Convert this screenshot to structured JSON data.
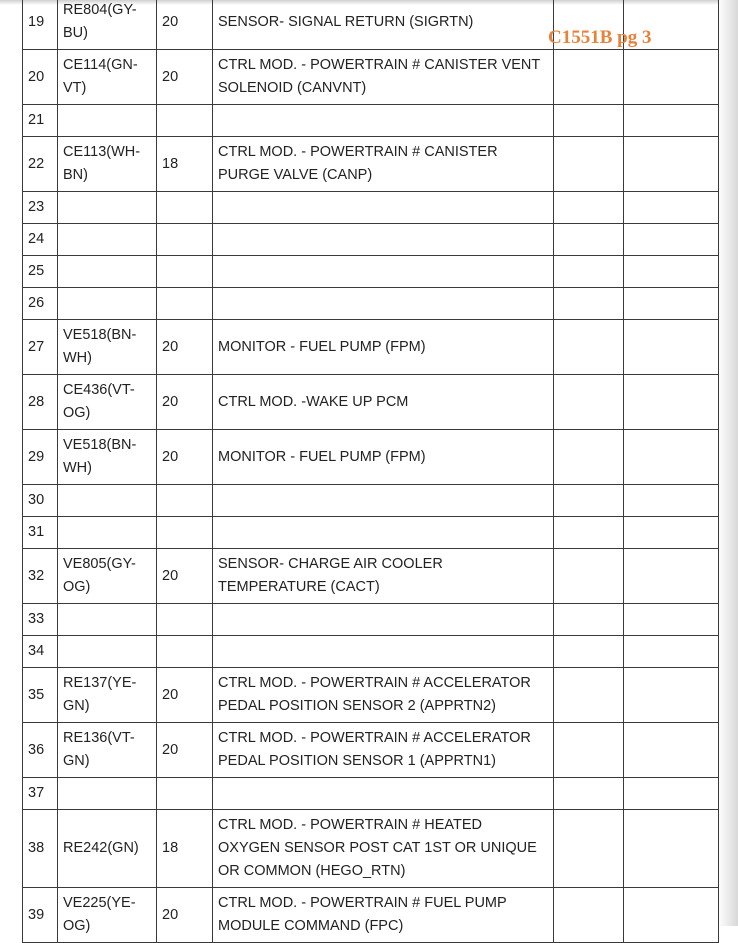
{
  "annotation": "C1551B pg 3",
  "table": {
    "rows": [
      {
        "pin": "19",
        "circuit": "RE804(GY-BU)",
        "gauge": "20",
        "function": "SENSOR- SIGNAL RETURN (SIGRTN)"
      },
      {
        "pin": "20",
        "circuit": "CE114(GN-VT)",
        "gauge": "20",
        "function": "CTRL MOD. - POWERTRAIN # CANISTER VENT SOLENOID (CANVNT)"
      },
      {
        "pin": "21"
      },
      {
        "pin": "22",
        "circuit": "CE113(WH-BN)",
        "gauge": "18",
        "function": "CTRL MOD. - POWERTRAIN # CANISTER PURGE VALVE (CANP)"
      },
      {
        "pin": "23"
      },
      {
        "pin": "24"
      },
      {
        "pin": "25"
      },
      {
        "pin": "26"
      },
      {
        "pin": "27",
        "circuit": "VE518(BN-WH)",
        "gauge": "20",
        "function": "MONITOR - FUEL PUMP (FPM)"
      },
      {
        "pin": "28",
        "circuit": "CE436(VT-OG)",
        "gauge": "20",
        "function": "CTRL MOD. -WAKE UP PCM"
      },
      {
        "pin": "29",
        "circuit": "VE518(BN-WH)",
        "gauge": "20",
        "function": "MONITOR - FUEL PUMP (FPM)"
      },
      {
        "pin": "30"
      },
      {
        "pin": "31"
      },
      {
        "pin": "32",
        "circuit": "VE805(GY-OG)",
        "gauge": "20",
        "function": "SENSOR- CHARGE AIR COOLER TEMPERATURE (CACT)"
      },
      {
        "pin": "33"
      },
      {
        "pin": "34"
      },
      {
        "pin": "35",
        "circuit": "RE137(YE-GN)",
        "gauge": "20",
        "function": "CTRL MOD. - POWERTRAIN # ACCELERATOR PEDAL POSITION SENSOR 2 (APPRTN2)"
      },
      {
        "pin": "36",
        "circuit": "RE136(VT-GN)",
        "gauge": "20",
        "function": "CTRL MOD. - POWERTRAIN # ACCELERATOR PEDAL POSITION SENSOR 1 (APPRTN1)"
      },
      {
        "pin": "37"
      },
      {
        "pin": "38",
        "circuit": "RE242(GN)",
        "gauge": "18",
        "function": "CTRL MOD. - POWERTRAIN # HEATED OXYGEN SENSOR POST CAT 1ST OR UNIQUE OR COMMON (HEGO_RTN)"
      },
      {
        "pin": "39",
        "circuit": "VE225(YE-OG)",
        "gauge": "20",
        "function": "CTRL MOD. - POWERTRAIN # FUEL PUMP MODULE COMMAND (FPC)"
      }
    ]
  }
}
